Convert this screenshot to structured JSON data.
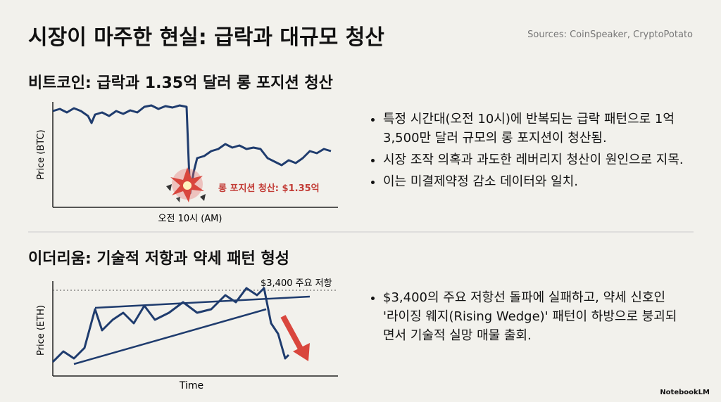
{
  "title": "시장이 마주한 현실: 급락과 대규모 청산",
  "sources": "Sources: CoinSpeaker, CryptoPotato",
  "sections": [
    {
      "heading": "비트코인: 급락과 1.35억 달러 롱 포지션 청산",
      "y_label": "Price (BTC)",
      "x_label": "오전 10시 (AM)",
      "annotation": "롱 포지션 청산: $1.35억",
      "bullets": [
        "특정 시간대(오전 10시)에 반복되는 급락 패턴으로 1억 3,500만 달러 규모의 롱 포지션이 청산됨.",
        "시장 조작 의혹과 과도한 레버리지 청산이 원인으로 지목.",
        "이는 미결제약정 감소 데이터와 일치."
      ]
    },
    {
      "heading": "이더리움: 기술적 저항과 약세 패턴 형성",
      "y_label": "Price (ETH)",
      "x_label": "Time",
      "annotation": "$3,400 주요 저항",
      "bullets": [
        "$3,400의 주요 저항선 돌파에 실패하고, 약세 신호인 '라이징 웨지(Rising Wedge)' 패턴이 하방으로 붕괴되면서 기술적 실망 매물 출회."
      ]
    }
  ],
  "footer": "NotebookLM"
}
